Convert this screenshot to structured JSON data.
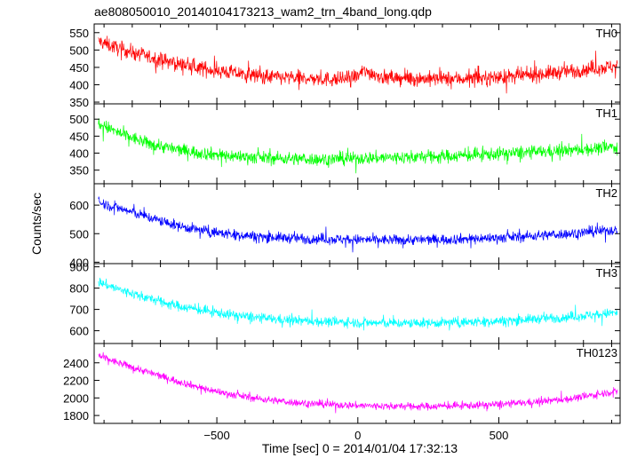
{
  "chart_data": {
    "type": "line",
    "title": "ae808050010_20140104173213_wam2_trn_4band_long.qdp",
    "xlabel": "Time [sec] 0 = 2014/01/04 17:32:13",
    "ylabel": "Counts/sec",
    "xlim": [
      -935,
      930
    ],
    "xticks": [
      -500,
      0,
      500
    ],
    "grid": false,
    "panels": [
      {
        "name": "TH0",
        "color": "#ff0000",
        "ylim": [
          345,
          575
        ],
        "yticks": [
          350,
          400,
          450,
          500,
          550
        ],
        "x": [
          -920,
          -850,
          -750,
          -650,
          -550,
          -450,
          -350,
          -250,
          -150,
          -60,
          0,
          20,
          100,
          200,
          300,
          400,
          500,
          600,
          700,
          800,
          900
        ],
        "y": [
          525,
          505,
          482,
          462,
          447,
          435,
          425,
          420,
          417,
          415,
          425,
          440,
          420,
          418,
          417,
          418,
          421,
          427,
          435,
          444,
          452
        ],
        "noise": 28
      },
      {
        "name": "TH1",
        "color": "#00ff00",
        "ylim": [
          310,
          545
        ],
        "yticks": [
          350,
          400,
          450,
          500
        ],
        "x": [
          -920,
          -850,
          -750,
          -650,
          -550,
          -450,
          -350,
          -250,
          -150,
          -50,
          50,
          150,
          250,
          350,
          450,
          550,
          650,
          750,
          850,
          900
        ],
        "y": [
          488,
          460,
          430,
          412,
          400,
          392,
          387,
          384,
          382,
          383,
          386,
          388,
          390,
          392,
          396,
          400,
          404,
          408,
          414,
          418
        ],
        "noise": 25
      },
      {
        "name": "TH2",
        "color": "#0000ff",
        "ylim": [
          395,
          675
        ],
        "yticks": [
          400,
          500,
          600
        ],
        "x": [
          -920,
          -850,
          -750,
          -650,
          -550,
          -450,
          -350,
          -250,
          -150,
          -50,
          50,
          150,
          250,
          350,
          450,
          550,
          650,
          750,
          850,
          900
        ],
        "y": [
          610,
          590,
          560,
          530,
          510,
          498,
          490,
          485,
          482,
          480,
          478,
          478,
          479,
          481,
          484,
          488,
          494,
          500,
          508,
          512
        ],
        "noise": 24
      },
      {
        "name": "TH3",
        "color": "#00ffff",
        "ylim": [
          540,
          915
        ],
        "yticks": [
          600,
          700,
          800,
          900
        ],
        "x": [
          -920,
          -850,
          -750,
          -650,
          -550,
          -450,
          -350,
          -250,
          -150,
          -50,
          50,
          150,
          250,
          350,
          450,
          550,
          650,
          750,
          850,
          900
        ],
        "y": [
          830,
          795,
          755,
          720,
          695,
          675,
          660,
          650,
          644,
          640,
          637,
          635,
          636,
          639,
          643,
          649,
          657,
          665,
          676,
          683
        ],
        "noise": 30
      },
      {
        "name": "TH0123",
        "color": "#ff00ff",
        "ylim": [
          1710,
          2620
        ],
        "yticks": [
          1800,
          2000,
          2200,
          2400
        ],
        "x": [
          -920,
          -850,
          -750,
          -650,
          -550,
          -450,
          -350,
          -250,
          -150,
          -50,
          50,
          150,
          250,
          350,
          450,
          550,
          650,
          750,
          850,
          900
        ],
        "y": [
          2480,
          2400,
          2300,
          2200,
          2110,
          2040,
          1990,
          1955,
          1932,
          1918,
          1910,
          1905,
          1905,
          1910,
          1920,
          1935,
          1960,
          1990,
          2040,
          2070
        ],
        "noise": 55
      }
    ]
  }
}
